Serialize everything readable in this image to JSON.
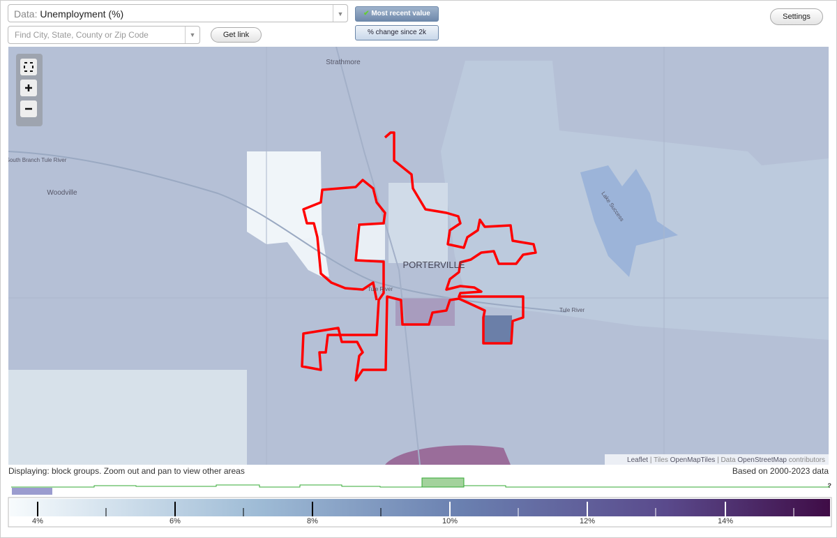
{
  "controls": {
    "data_label": "Data:",
    "data_value": "Unemployment (%)",
    "search_placeholder": "Find City, State, County or Zip Code",
    "get_link": "Get link",
    "most_recent": "Most recent value",
    "change": "% change since 2k",
    "settings": "Settings"
  },
  "map": {
    "places": [
      "Strathmore",
      "Woodville",
      "PORTERVILLE"
    ],
    "rivers": [
      "South Branch Tule River",
      "Tule River",
      "Tule River",
      "Lake Success"
    ],
    "attribution": {
      "leaflet": "Leaflet",
      "sep1": "|",
      "tiles": "Tiles",
      "openmaptiles": "OpenMapTiles",
      "sep2": "|",
      "data": "Data",
      "osm": "OpenStreetMap",
      "contributors": "contributors"
    }
  },
  "status": {
    "displaying": "Displaying: block groups. Zoom out and pan to view other areas",
    "based_on": "Based on 2000-2023 data",
    "help": "?"
  },
  "legend": {
    "ticks": [
      "4%",
      "6%",
      "8%",
      "10%",
      "12%",
      "14%"
    ]
  }
}
